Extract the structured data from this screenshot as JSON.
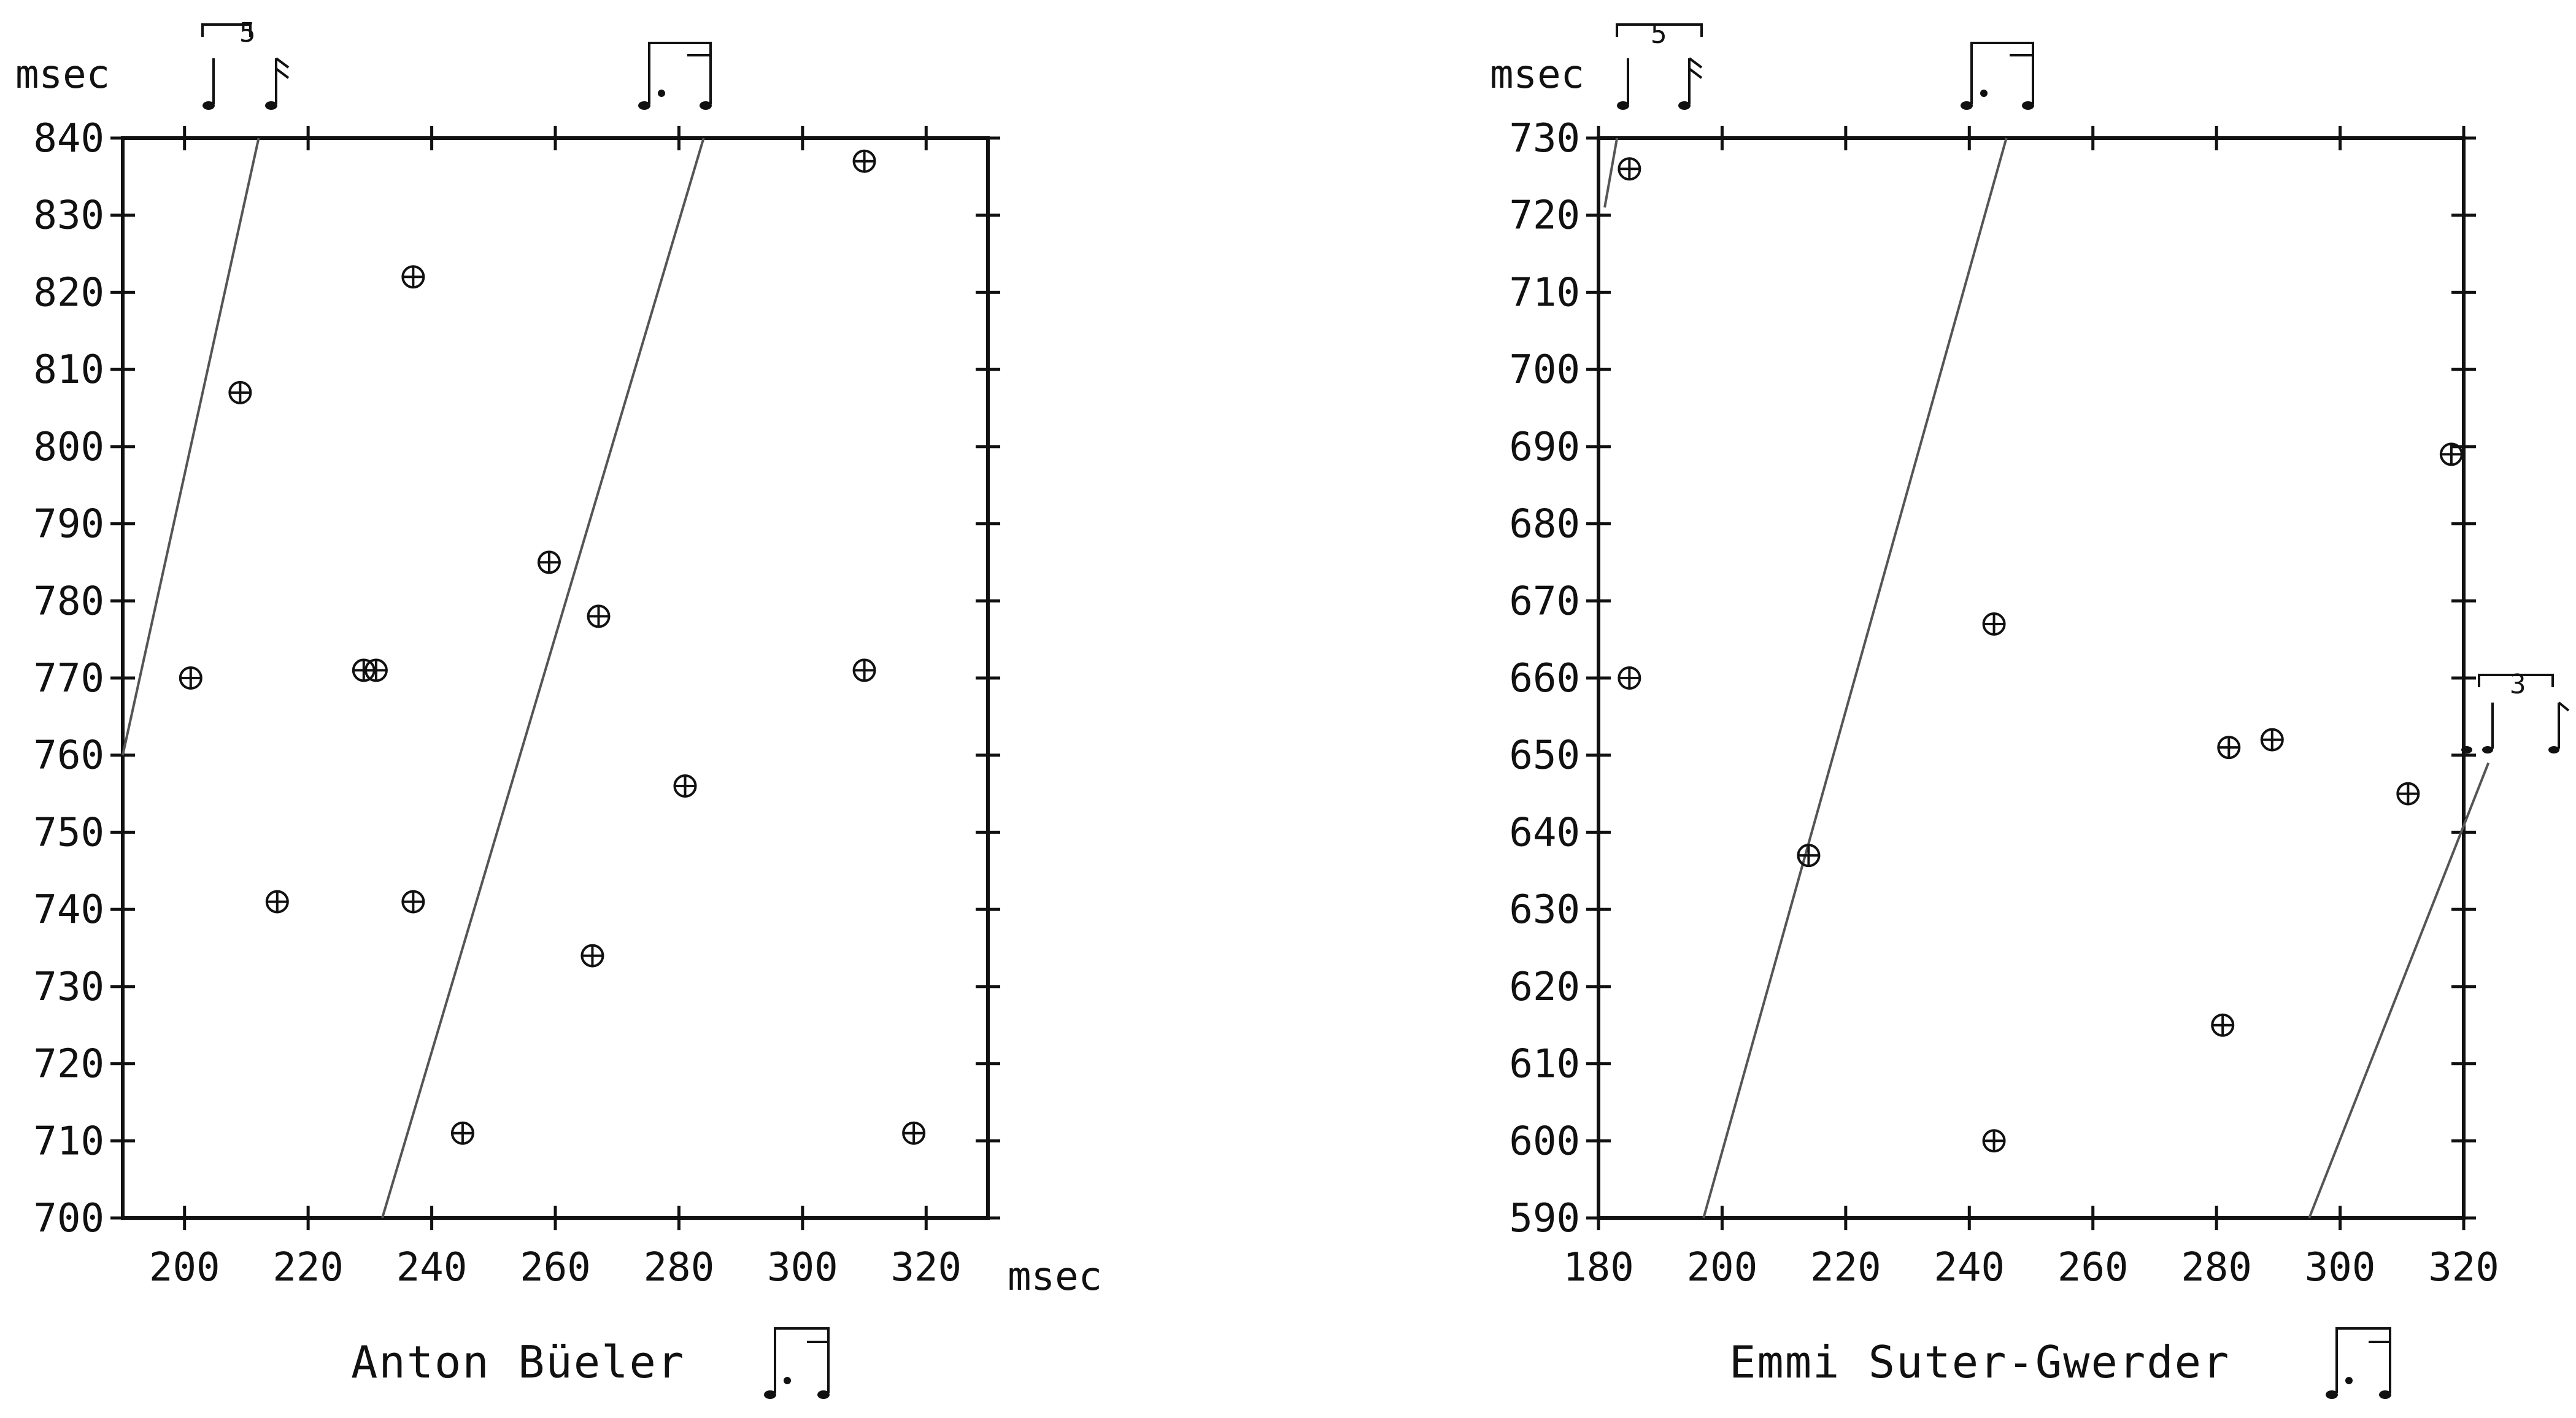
{
  "chart_data": [
    {
      "type": "scatter",
      "caption": "Anton Büeler",
      "ylabel": "msec",
      "xlabel": "msec",
      "xlim": [
        190,
        330
      ],
      "ylim": [
        700,
        840
      ],
      "x_ticks": [
        200,
        220,
        240,
        260,
        280,
        300,
        320
      ],
      "y_ticks": [
        700,
        710,
        720,
        730,
        740,
        750,
        760,
        770,
        780,
        790,
        800,
        810,
        820,
        830,
        840
      ],
      "grid": false,
      "marker": "circle-plus",
      "points": [
        {
          "x": 201,
          "y": 770
        },
        {
          "x": 209,
          "y": 807
        },
        {
          "x": 215,
          "y": 741
        },
        {
          "x": 229,
          "y": 771
        },
        {
          "x": 231,
          "y": 771
        },
        {
          "x": 237,
          "y": 822
        },
        {
          "x": 237,
          "y": 741
        },
        {
          "x": 245,
          "y": 711
        },
        {
          "x": 259,
          "y": 785
        },
        {
          "x": 267,
          "y": 778
        },
        {
          "x": 266,
          "y": 734
        },
        {
          "x": 281,
          "y": 756
        },
        {
          "x": 310,
          "y": 837
        },
        {
          "x": 310,
          "y": 771
        },
        {
          "x": 318,
          "y": 711
        }
      ],
      "reference_lines": [
        {
          "x": [
            190,
            212
          ],
          "y": [
            760,
            840
          ],
          "top_annotation": "5"
        },
        {
          "x": [
            232,
            284
          ],
          "y": [
            700,
            840
          ],
          "top_annotation": ""
        }
      ]
    },
    {
      "type": "scatter",
      "caption": "Emmi Suter-Gwerder",
      "ylabel": "msec",
      "xlabel": "",
      "xlim": [
        180,
        320
      ],
      "ylim": [
        590,
        730
      ],
      "x_ticks": [
        180,
        200,
        220,
        240,
        260,
        280,
        300,
        320
      ],
      "y_ticks": [
        590,
        600,
        610,
        620,
        630,
        640,
        650,
        660,
        670,
        680,
        690,
        700,
        710,
        720,
        730
      ],
      "grid": false,
      "marker": "circle-plus",
      "points": [
        {
          "x": 185,
          "y": 726
        },
        {
          "x": 185,
          "y": 660
        },
        {
          "x": 214,
          "y": 637
        },
        {
          "x": 244,
          "y": 667
        },
        {
          "x": 244,
          "y": 600
        },
        {
          "x": 281,
          "y": 615
        },
        {
          "x": 282,
          "y": 651
        },
        {
          "x": 289,
          "y": 652
        },
        {
          "x": 311,
          "y": 645
        },
        {
          "x": 318,
          "y": 689
        }
      ],
      "reference_lines": [
        {
          "x": [
            181,
            183
          ],
          "y": [
            721,
            730
          ],
          "top_annotation": "5"
        },
        {
          "x": [
            197,
            246
          ],
          "y": [
            590,
            730
          ],
          "top_annotation": ""
        },
        {
          "x": [
            295,
            324
          ],
          "y": [
            590,
            649
          ],
          "top_annotation": "3"
        }
      ]
    }
  ]
}
